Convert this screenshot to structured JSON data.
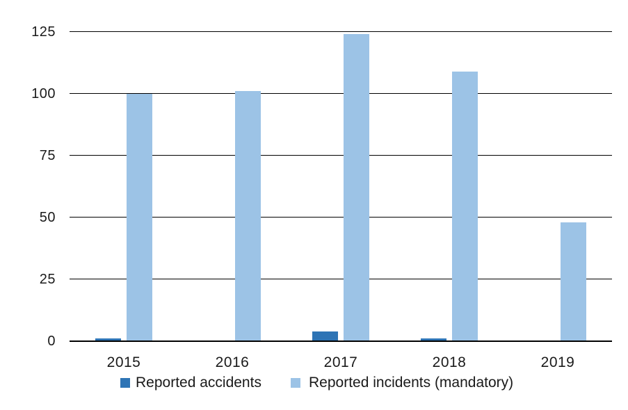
{
  "chart_data": {
    "type": "bar",
    "title": "",
    "categories": [
      "2015",
      "2016",
      "2017",
      "2018",
      "2019"
    ],
    "series": [
      {
        "name": "Reported accidents",
        "color": "#2E74B5",
        "values": [
          1,
          0,
          4,
          1,
          0
        ]
      },
      {
        "name": "Reported incidents (mandatory)",
        "color": "#9CC3E6",
        "values": [
          100,
          101,
          124,
          109,
          48
        ]
      }
    ],
    "ylim": [
      0,
      125
    ],
    "yticks": [
      0,
      25,
      50,
      75,
      100,
      125
    ],
    "xlabel": "",
    "ylabel": "",
    "grid": "horizontal",
    "gridline_color": "#000000",
    "axis_line_color": "#000000",
    "text_color": "#1a1a1a",
    "background_color": "#ffffff",
    "legend_position": "bottom"
  }
}
